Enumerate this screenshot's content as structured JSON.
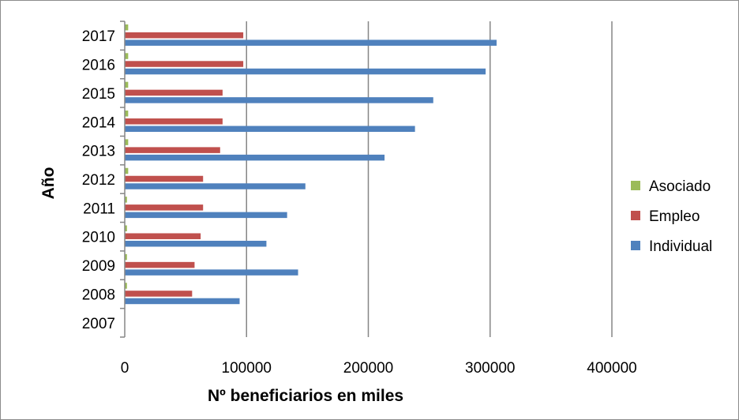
{
  "chart_data": {
    "type": "bar",
    "orientation": "horizontal",
    "categories": [
      "2007",
      "2008",
      "2009",
      "2010",
      "2011",
      "2012",
      "2013",
      "2014",
      "2015",
      "2016",
      "2017"
    ],
    "series": [
      {
        "name": "Asociado",
        "color": "#9bbb59",
        "values": [
          0,
          1500,
          1500,
          1500,
          1500,
          2500,
          2500,
          2500,
          2500,
          2500,
          2500
        ]
      },
      {
        "name": "Empleo",
        "color": "#c0504d",
        "values": [
          0,
          55000,
          57000,
          62000,
          64000,
          64000,
          78000,
          80000,
          80000,
          97000,
          97000
        ]
      },
      {
        "name": "Individual",
        "color": "#4f81bd",
        "values": [
          0,
          94000,
          142000,
          116000,
          133000,
          148000,
          213000,
          238000,
          253000,
          296000,
          305000
        ]
      }
    ],
    "xlabel": "Nº beneficiarios en miles",
    "ylabel": "Año",
    "xlim": [
      0,
      400000
    ],
    "xticks": [
      "0",
      "100000",
      "200000",
      "300000",
      "400000"
    ],
    "xtick_values": [
      0,
      100000,
      200000,
      300000,
      400000
    ],
    "grid": "vertical",
    "legend": "right"
  }
}
